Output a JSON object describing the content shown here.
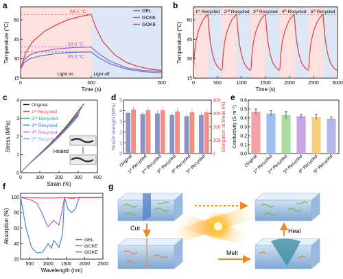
{
  "panel_labels": {
    "a": "a",
    "b": "b",
    "c": "c",
    "d": "d",
    "e": "e",
    "f": "f",
    "g": "g"
  },
  "colors": {
    "gel": "#4a7fd6",
    "gcke": "#a85fd1",
    "goke": "#e0484a",
    "heat": "#f6b6b2",
    "cool": "#c9d8f2",
    "orange": "#f08a1e"
  },
  "chart_data": [
    {
      "id": "a",
      "type": "line",
      "xlabel": "Time (s)",
      "ylabel": "Temperature (°C)",
      "xlim": [
        0,
        600
      ],
      "ylim": [
        15,
        70
      ],
      "xticks": [
        0,
        300,
        600
      ],
      "yticks": [
        15,
        30,
        45,
        60
      ],
      "legend": [
        "GEL",
        "GCKE",
        "GOKE"
      ],
      "legend_position": "top-right",
      "series": [
        {
          "name": "GEL",
          "color": "#4a7fd6",
          "x": [
            0,
            15,
            40,
            80,
            150,
            225,
            300,
            330,
            380,
            450,
            520,
            600
          ],
          "y": [
            22,
            27,
            30,
            32,
            34,
            35,
            35.2,
            31,
            26,
            22,
            20,
            19
          ]
        },
        {
          "name": "GCKE",
          "color": "#a85fd1",
          "x": [
            0,
            15,
            40,
            80,
            150,
            225,
            300,
            330,
            380,
            450,
            520,
            600
          ],
          "y": [
            22,
            29,
            33,
            35.5,
            37.5,
            38.6,
            39,
            34,
            28,
            23,
            21,
            20
          ]
        },
        {
          "name": "GOKE",
          "color": "#e0484a",
          "x": [
            0,
            20,
            50,
            100,
            150,
            200,
            250,
            300,
            320,
            350,
            400,
            450,
            500,
            550,
            600
          ],
          "y": [
            22,
            34,
            43,
            51,
            56,
            60,
            62.5,
            64.1,
            54,
            43,
            33,
            27,
            24,
            22,
            21
          ]
        }
      ],
      "annotations": [
        {
          "text": "64.1 °C",
          "value": 64.1,
          "color": "#e0484a"
        },
        {
          "text": "39.0 °C",
          "value": 39.0,
          "color": "#a85fd1"
        },
        {
          "text": "35.2 °C",
          "value": 35.2,
          "color": "#4a7fd6"
        }
      ],
      "labels": {
        "light_on": "Light on",
        "light_off": "Light off"
      }
    },
    {
      "id": "b",
      "type": "line",
      "xlabel": "Time (s)",
      "ylabel": "Temperature (°C)",
      "xlim": [
        0,
        3000
      ],
      "ylim": [
        15,
        70
      ],
      "xticks": [
        0,
        500,
        1000,
        1500,
        2000,
        2500,
        3000
      ],
      "yticks": [
        15,
        30,
        45,
        60
      ],
      "reference_line": 64.1,
      "cycles": [
        "1st Recycled",
        "2nd Recycled",
        "3rd Recycled",
        "4th Recycled",
        "5th Recycled"
      ],
      "cycle_labels": [
        {
          "num": "1",
          "sup": "st",
          "rest": " Recycled"
        },
        {
          "num": "2",
          "sup": "nd",
          "rest": " Recycled"
        },
        {
          "num": "3",
          "sup": "rd",
          "rest": " Recycled"
        },
        {
          "num": "4",
          "sup": "th",
          "rest": " Recycled"
        },
        {
          "num": "5",
          "sup": "th",
          "rest": " Recycled"
        }
      ],
      "cycle_period": 600,
      "heat_duration": 300,
      "series": [
        {
          "name": "GOKE",
          "color": "#e0484a",
          "heat_x": [
            0,
            20,
            50,
            100,
            150,
            200,
            250,
            300
          ],
          "heat_y": [
            22,
            34,
            43,
            51,
            56,
            60,
            62.5,
            64.1
          ],
          "cool_x": [
            300,
            320,
            350,
            400,
            450,
            500,
            550,
            600
          ],
          "cool_y": [
            64.1,
            54,
            43,
            33,
            27,
            24,
            22,
            21
          ]
        }
      ]
    },
    {
      "id": "c",
      "type": "line",
      "xlabel": "Strain (%)",
      "ylabel": "Stress (MPa)",
      "xlim": [
        0,
        400
      ],
      "ylim": [
        0,
        4
      ],
      "xticks": [
        0,
        100,
        200,
        300,
        400
      ],
      "yticks": [
        0,
        1,
        2,
        3,
        4
      ],
      "legend": [
        {
          "num": "Original",
          "sup": "",
          "rest": ""
        },
        {
          "num": "1",
          "sup": "st",
          "rest": " Recycled"
        },
        {
          "num": "2",
          "sup": "nd",
          "rest": " Recycled"
        },
        {
          "num": "3",
          "sup": "rd",
          "rest": " Recycled"
        },
        {
          "num": "4",
          "sup": "th",
          "rest": " Recycled"
        },
        {
          "num": "5",
          "sup": "th",
          "rest": " Recycled"
        }
      ],
      "series": [
        {
          "name": "Original",
          "color": "#222222",
          "x": [
            0,
            50,
            100,
            150,
            200,
            250,
            300,
            330
          ],
          "y": [
            0,
            0.55,
            1.05,
            1.55,
            2.1,
            2.7,
            3.4,
            3.8
          ]
        },
        {
          "name": "1st Recycled",
          "color": "#e0484a",
          "x": [
            0,
            50,
            100,
            150,
            200,
            250,
            300,
            325
          ],
          "y": [
            0,
            0.55,
            1.03,
            1.52,
            2.06,
            2.65,
            3.3,
            3.72
          ]
        },
        {
          "name": "2nd Recycled",
          "color": "#2f9e8f",
          "x": [
            0,
            50,
            100,
            150,
            200,
            250,
            300,
            320
          ],
          "y": [
            0,
            0.54,
            1.02,
            1.5,
            2.03,
            2.6,
            3.25,
            3.65
          ]
        },
        {
          "name": "3rd Recycled",
          "color": "#3b6fd8",
          "x": [
            0,
            50,
            100,
            150,
            200,
            250,
            300,
            315
          ],
          "y": [
            0,
            0.53,
            1.0,
            1.48,
            2.0,
            2.55,
            3.2,
            3.58
          ]
        },
        {
          "name": "4th Recycled",
          "color": "#b565d9",
          "x": [
            0,
            50,
            100,
            150,
            200,
            250,
            300,
            310
          ],
          "y": [
            0,
            0.52,
            0.99,
            1.46,
            1.97,
            2.52,
            3.15,
            3.5
          ]
        },
        {
          "name": "5th Recycled",
          "color": "#7f9bd8",
          "x": [
            0,
            50,
            100,
            150,
            200,
            250,
            300,
            305
          ],
          "y": [
            0,
            0.52,
            0.98,
            1.45,
            1.95,
            2.5,
            3.1,
            3.45
          ]
        }
      ],
      "inset_label": "Healed"
    },
    {
      "id": "d",
      "type": "bar",
      "categories": [
        "Original",
        "1st Recycled",
        "2nd Recycled",
        "3rd Recycled",
        "4th Recycled",
        "5th Recycled"
      ],
      "category_labels": [
        {
          "num": "Original",
          "sup": "",
          "rest": ""
        },
        {
          "num": "1",
          "sup": "st",
          "rest": " Recycled"
        },
        {
          "num": "2",
          "sup": "nd",
          "rest": " Recycled"
        },
        {
          "num": "3",
          "sup": "rd",
          "rest": " Recycled"
        },
        {
          "num": "4",
          "sup": "th",
          "rest": " Recycled"
        },
        {
          "num": "5",
          "sup": "th",
          "rest": " Recycled"
        }
      ],
      "ylabel": "Tensile strength (MPa)",
      "ylabel_right": "Elongation at break (%)",
      "ylim": [
        0,
        5
      ],
      "yticks": [
        0,
        1,
        2,
        3,
        4,
        5
      ],
      "ylim_right": [
        0,
        400
      ],
      "yticks_right": [
        0,
        100,
        200,
        300,
        400
      ],
      "series": [
        {
          "name": "Tensile strength",
          "color": "#8a93c4",
          "values": [
            3.8,
            3.7,
            3.75,
            3.6,
            3.5,
            3.6
          ],
          "errors": [
            0.2,
            0.2,
            0.25,
            0.25,
            0.25,
            0.25
          ]
        },
        {
          "name": "Elongation at break",
          "color": "#ef8f86",
          "values": [
            330,
            325,
            325,
            315,
            310,
            310
          ],
          "errors": [
            20,
            25,
            30,
            25,
            25,
            25
          ]
        }
      ]
    },
    {
      "id": "e",
      "type": "bar",
      "categories": [
        "Original",
        "1st Recycled",
        "2nd Recycled",
        "3rd Recycled",
        "4th Recycled",
        "5th Recycled"
      ],
      "category_labels": [
        {
          "num": "Original",
          "sup": "",
          "rest": ""
        },
        {
          "num": "1",
          "sup": "st",
          "rest": " Recycled"
        },
        {
          "num": "2",
          "sup": "nd",
          "rest": " Recycled"
        },
        {
          "num": "3",
          "sup": "rd",
          "rest": " Recycled"
        },
        {
          "num": "4",
          "sup": "th",
          "rest": " Recycled"
        },
        {
          "num": "5",
          "sup": "th",
          "rest": " Recycled"
        }
      ],
      "ylabel": "Conductivity (S m⁻¹)",
      "ylim": [
        0,
        0.6
      ],
      "yticks": [
        0.0,
        0.1,
        0.2,
        0.3,
        0.4,
        0.5,
        0.6
      ],
      "values": [
        0.47,
        0.45,
        0.43,
        0.42,
        0.41,
        0.39
      ],
      "errors": [
        0.03,
        0.03,
        0.04,
        0.02,
        0.03,
        0.02
      ],
      "colors": [
        "#f3a3a8",
        "#9dc0ef",
        "#a8dca0",
        "#c7a6e3",
        "#f7cf7f",
        "#b5b7e8"
      ]
    },
    {
      "id": "f",
      "type": "line",
      "xlabel": "Wavelength (nm)",
      "ylabel": "Absorption (%)",
      "xlim": [
        250,
        2500
      ],
      "ylim": [
        20,
        105
      ],
      "xticks": [
        500,
        1000,
        1500,
        2000,
        2500
      ],
      "yticks": [
        20,
        40,
        60,
        80,
        100
      ],
      "legend": [
        "GEL",
        "GCKE",
        "GOKE"
      ],
      "legend_position": "bottom-right",
      "series": [
        {
          "name": "GEL",
          "color": "#3d86d6",
          "x": [
            250,
            400,
            550,
            700,
            850,
            950,
            1000,
            1100,
            1150,
            1200,
            1300,
            1400,
            1450,
            1550,
            1650,
            1750,
            1850,
            1950,
            2100,
            2300,
            2500
          ],
          "y": [
            100,
            60,
            35,
            28,
            29,
            36,
            40,
            34,
            44,
            42,
            35,
            53,
            100,
            84,
            80,
            85,
            99,
            100,
            100,
            100,
            100
          ]
        },
        {
          "name": "GCKE",
          "color": "#a85fd1",
          "x": [
            250,
            400,
            550,
            700,
            850,
            950,
            1000,
            1100,
            1150,
            1200,
            1300,
            1400,
            1450,
            1550,
            1650,
            1750,
            1850,
            1950,
            2100,
            2300,
            2500
          ],
          "y": [
            100,
            98,
            96,
            92,
            78,
            66,
            62,
            67,
            70,
            68,
            64,
            86,
            100,
            99,
            98,
            99,
            100,
            100,
            100,
            100,
            100
          ]
        },
        {
          "name": "GOKE",
          "color": "#e0484a",
          "x": [
            250,
            500,
            800,
            1000,
            1200,
            1400,
            1600,
            1800,
            2000,
            2200,
            2500
          ],
          "y": [
            100,
            99.5,
            99,
            99,
            99,
            99.5,
            99.5,
            99.5,
            99.5,
            99.5,
            99.5
          ]
        }
      ]
    }
  ],
  "schematic_g": {
    "cut": "Cut",
    "heal": "Heal",
    "melt": "Melt"
  }
}
